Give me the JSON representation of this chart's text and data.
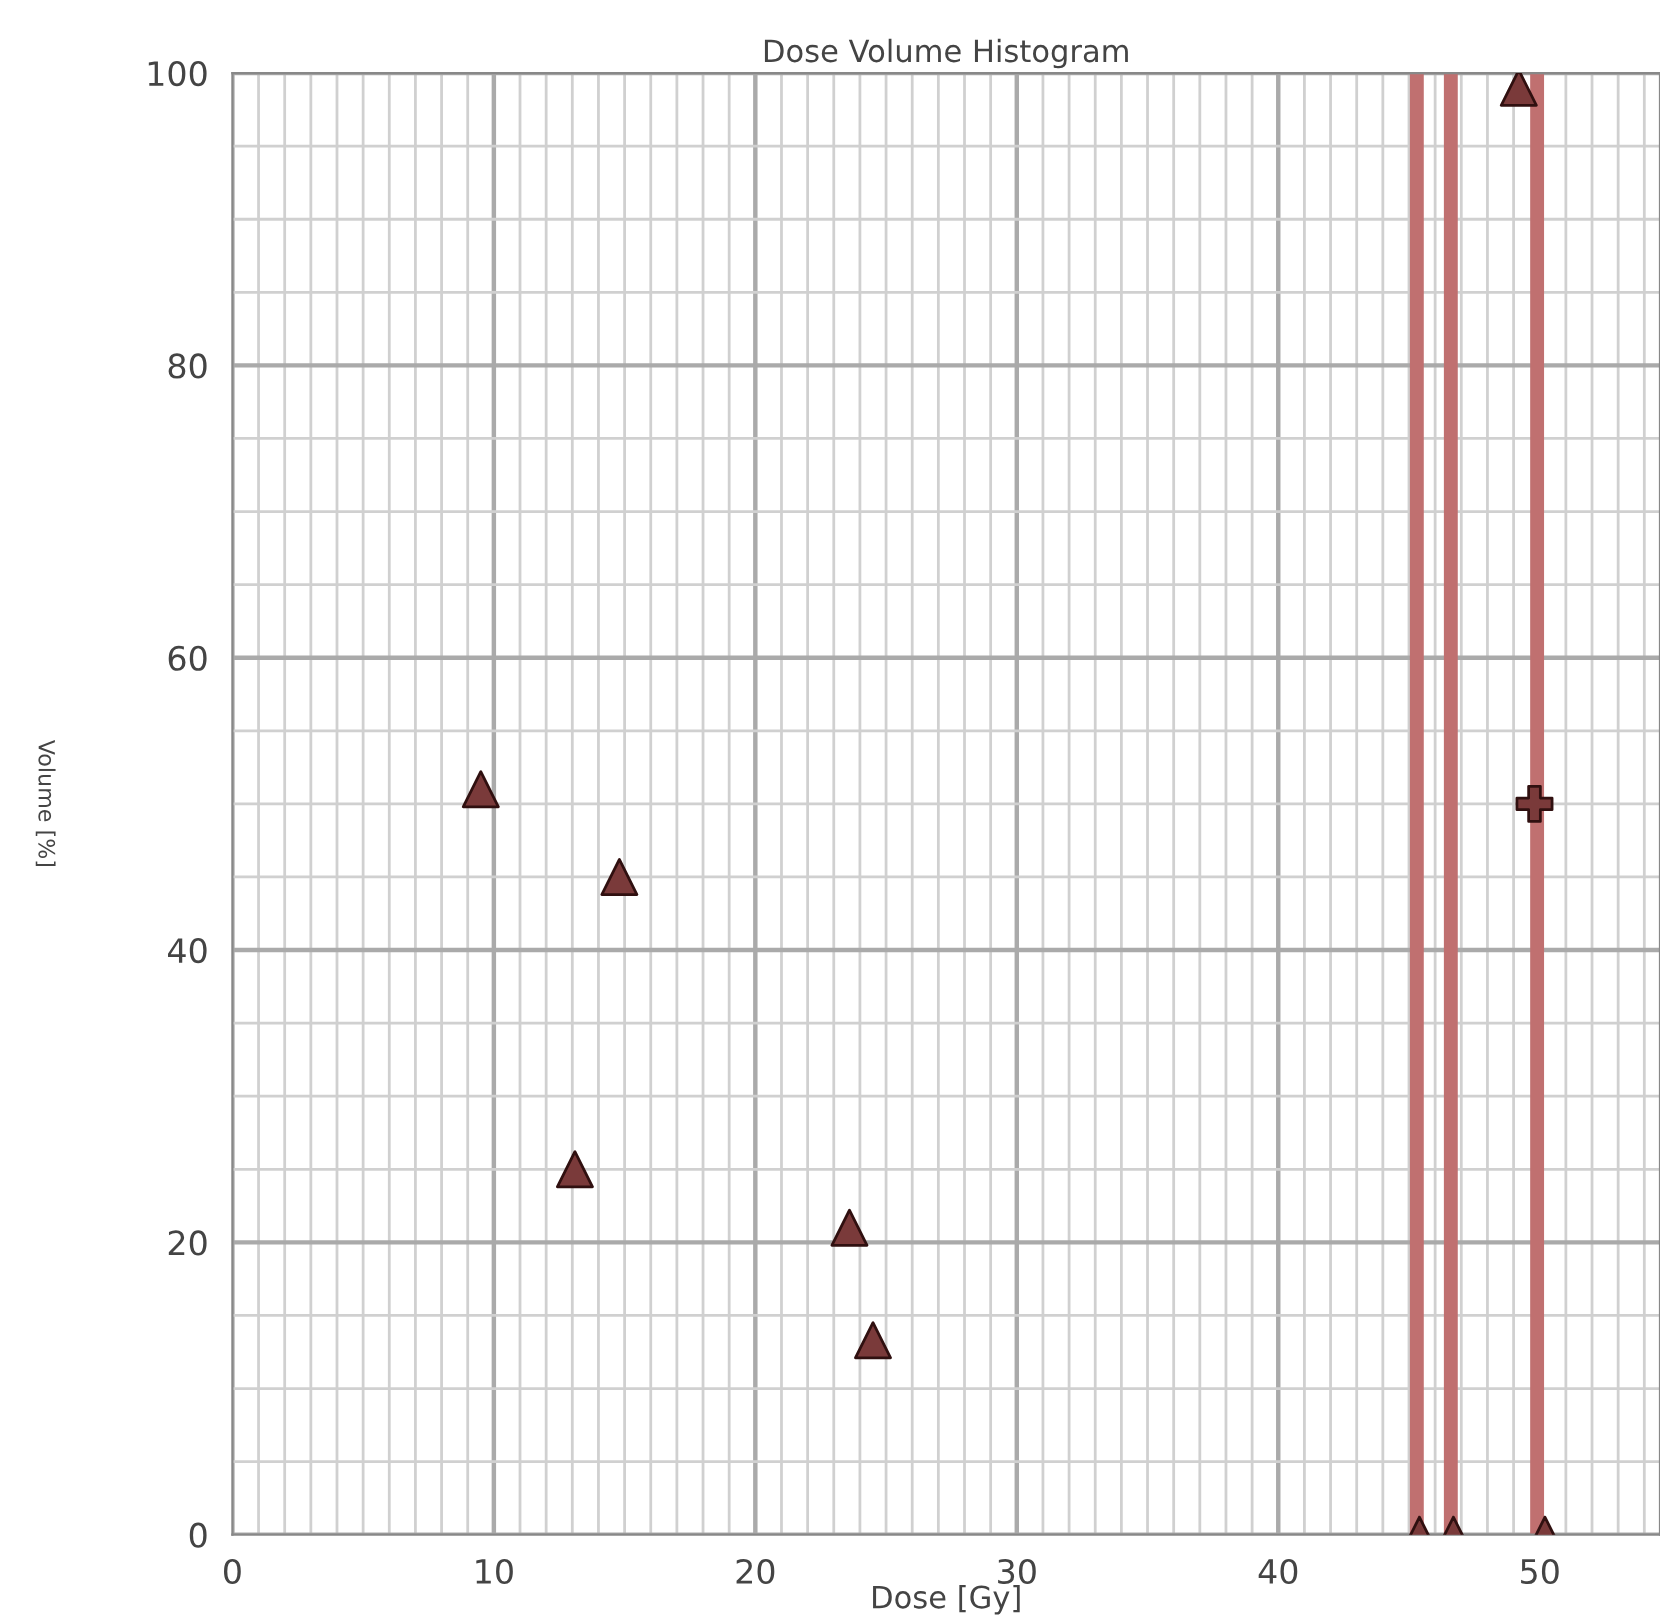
{
  "chart_data": {
    "type": "scatter",
    "title": "Dose Volume Histogram",
    "xlabel": "Dose [Gy]",
    "ylabel": "Volume [%]",
    "xlim": [
      0,
      54.6
    ],
    "ylim": [
      0,
      100
    ],
    "xticks": [
      0,
      10,
      20,
      30,
      40,
      50
    ],
    "yticks": [
      0,
      20,
      40,
      60,
      80,
      100
    ],
    "grid": true,
    "series": [
      {
        "marker": "triangle",
        "color": "#7a3a3a",
        "x": [
          9.5,
          14.8,
          13.1,
          23.6,
          24.5,
          45.4,
          46.7,
          50.2,
          49.2
        ],
        "values": [
          51,
          45,
          25,
          21,
          13.3,
          0,
          0,
          0,
          99
        ]
      },
      {
        "marker": "cross",
        "color": "#7a3a3a",
        "x": [
          49.8
        ],
        "values": [
          50
        ]
      }
    ],
    "ref_lines": [
      {
        "axis": "x",
        "value": 45.3,
        "label": null,
        "color": "#c07070"
      },
      {
        "axis": "x",
        "value": 46.6,
        "label": null,
        "color": "#c07070"
      },
      {
        "axis": "x",
        "value": 49.9,
        "label": null,
        "color": "#c07070"
      }
    ]
  }
}
